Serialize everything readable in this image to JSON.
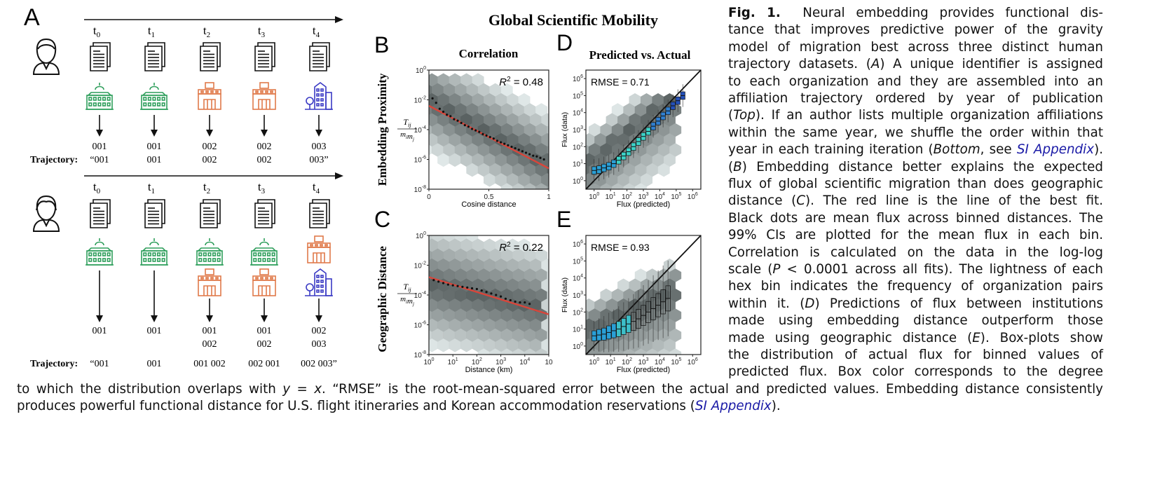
{
  "figure": {
    "title": "Global Scientific Mobility",
    "panel_labels": {
      "A": "A",
      "B": "B",
      "C": "C",
      "D": "D",
      "E": "E"
    },
    "panel_a": {
      "time_labels": [
        "t0",
        "t1",
        "t2",
        "t3",
        "t4"
      ],
      "time_base": "t",
      "time_subs": [
        "0",
        "1",
        "2",
        "3",
        "4"
      ],
      "trajectory_label": "Trajectory:",
      "top": {
        "ids": [
          "001",
          "001",
          "002",
          "002",
          "003"
        ],
        "trajectory": [
          "“001",
          "001",
          "002",
          "002",
          "003”"
        ],
        "buildings": [
          "green-university",
          "green-university",
          "orange-building",
          "orange-building",
          "blue-building"
        ]
      },
      "bottom": {
        "ids_row1": [
          "001",
          "001",
          "001",
          "001",
          "002"
        ],
        "ids_row2": [
          "",
          "",
          "002",
          "002",
          "003"
        ],
        "trajectory": [
          "“001",
          "001",
          "001 002",
          "002 001",
          "002  003”"
        ]
      }
    },
    "colors": {
      "green": "#2e9e5b",
      "orange": "#e07a4a",
      "blue": "#3a3ac4",
      "red_fit": "#d9453a",
      "link": "#1a1aa6"
    },
    "row_labels": {
      "top": "Embedding Proximity",
      "bottom": "Geographic Distance"
    },
    "col_titles": {
      "left": "Correlation",
      "right": "Predicted vs. Actual"
    },
    "ylabel_fraction": {
      "num": "T",
      "num_sub": "ij",
      "den": "m",
      "den_sub": "i",
      "den2": "m",
      "den2_sub": "j"
    }
  },
  "chart_data": [
    {
      "panel": "B",
      "type": "scatter",
      "title": "Correlation",
      "annotation": "R² = 0.48",
      "annotation_base": "R",
      "annotation_sup": "2",
      "annotation_rest": " = 0.48",
      "xlabel": "Cosine distance",
      "ylabel": "Tij / mi mj",
      "x_ticks": [
        "0",
        "0.5",
        "1"
      ],
      "xlim": [
        0,
        1
      ],
      "y_ticks": [
        "10^0",
        "10^-2",
        "10^-4",
        "10^-6",
        "10^-8"
      ],
      "ylim_log10": [
        -8,
        0
      ],
      "fit_line": {
        "x": [
          0,
          1
        ],
        "log10_y": [
          -2.4,
          -6.6
        ]
      },
      "mean_points": {
        "x": [
          0.03,
          0.06,
          0.09,
          0.12,
          0.15,
          0.18,
          0.21,
          0.24,
          0.27,
          0.3,
          0.33,
          0.36,
          0.39,
          0.42,
          0.45,
          0.48,
          0.51,
          0.54,
          0.57,
          0.6,
          0.63,
          0.66,
          0.69,
          0.72,
          0.75,
          0.78,
          0.81,
          0.84,
          0.87,
          0.9,
          0.93,
          0.96
        ],
        "log10_y": [
          -1.9,
          -2.2,
          -2.6,
          -2.8,
          -3.0,
          -3.1,
          -3.3,
          -3.4,
          -3.55,
          -3.7,
          -3.8,
          -3.95,
          -4.05,
          -4.15,
          -4.3,
          -4.4,
          -4.5,
          -4.6,
          -4.75,
          -4.85,
          -4.95,
          -5.05,
          -5.15,
          -5.25,
          -5.35,
          -5.45,
          -5.55,
          -5.65,
          -5.75,
          -5.8,
          -5.9,
          -6.0
        ]
      }
    },
    {
      "panel": "C",
      "type": "scatter",
      "annotation": "R² = 0.22",
      "annotation_base": "R",
      "annotation_sup": "2",
      "annotation_rest": " = 0.22",
      "xlabel": "Distance (km)",
      "ylabel": "Tij / mi mj",
      "x_ticks": [
        "10^0",
        "10^1",
        "10^2",
        "10^3",
        "10^4",
        "10"
      ],
      "xlim_log10": [
        0,
        5
      ],
      "y_ticks": [
        "10^0",
        "10^-2",
        "10^-4",
        "10^-6",
        "10^-8"
      ],
      "ylim_log10": [
        -8,
        0
      ],
      "fit_line": {
        "log10_x": [
          0,
          5
        ],
        "log10_y": [
          -2.8,
          -5.3
        ]
      },
      "mean_points": {
        "log10_x": [
          0.2,
          0.4,
          0.6,
          0.8,
          1.0,
          1.2,
          1.4,
          1.6,
          1.8,
          2.0,
          2.2,
          2.4,
          2.6,
          2.8,
          3.0,
          3.2,
          3.4,
          3.6,
          3.8,
          4.0,
          4.2
        ],
        "log10_y": [
          -3.0,
          -3.1,
          -3.2,
          -3.3,
          -3.35,
          -3.4,
          -3.45,
          -3.5,
          -3.55,
          -3.6,
          -3.7,
          -3.8,
          -3.9,
          -4.0,
          -4.1,
          -4.25,
          -4.35,
          -4.45,
          -4.5,
          -4.5,
          -4.6
        ]
      }
    },
    {
      "panel": "D",
      "type": "scatter",
      "title": "Predicted vs. Actual",
      "annotation": "RMSE = 0.71",
      "xlabel": "Flux (predicted)",
      "ylabel": "Flux (data)",
      "x_ticks": [
        "10^0",
        "10^1",
        "10^2",
        "10^3",
        "10^4",
        "10^5",
        "10^6"
      ],
      "xlim_log10": [
        -0.5,
        6.5
      ],
      "y_ticks": [
        "10^0",
        "10^1",
        "10^2",
        "10^3",
        "10^4",
        "10^5",
        "10^6"
      ],
      "ylim_log10": [
        -0.5,
        6.5
      ],
      "identity_line": true,
      "box_medians": {
        "log10_x": [
          0.0,
          0.3,
          0.6,
          0.9,
          1.2,
          1.5,
          1.8,
          2.1,
          2.4,
          2.7,
          3.0,
          3.3,
          3.6,
          3.9,
          4.2,
          4.5,
          4.8,
          5.1,
          5.4
        ],
        "log10_y": [
          0.6,
          0.65,
          0.75,
          0.85,
          1.0,
          1.2,
          1.45,
          1.7,
          2.0,
          2.3,
          2.6,
          2.9,
          3.2,
          3.5,
          3.8,
          4.1,
          4.4,
          4.7,
          5.0
        ]
      }
    },
    {
      "panel": "E",
      "type": "scatter",
      "annotation": "RMSE = 0.93",
      "xlabel": "Flux (predicted)",
      "ylabel": "Flux (data)",
      "x_ticks": [
        "10^0",
        "10^1",
        "10^2",
        "10^3",
        "10^4",
        "10^5",
        "10^6"
      ],
      "xlim_log10": [
        -0.5,
        6.5
      ],
      "y_ticks": [
        "10^0",
        "10^1",
        "10^2",
        "10^3",
        "10^4",
        "10^5",
        "10^6"
      ],
      "ylim_log10": [
        -0.5,
        6.5
      ],
      "identity_line": true,
      "box_medians": {
        "log10_x": [
          0.0,
          0.3,
          0.6,
          0.9,
          1.2,
          1.5,
          1.8,
          2.1,
          2.4,
          2.7,
          3.0,
          3.3,
          3.6,
          3.9,
          4.2,
          4.5
        ],
        "log10_y": [
          0.6,
          0.65,
          0.7,
          0.8,
          0.9,
          1.0,
          1.15,
          1.3,
          1.45,
          1.6,
          1.8,
          2.0,
          2.2,
          2.4,
          2.6,
          2.8
        ]
      }
    }
  ],
  "caption": {
    "lines": [
      [
        "Fig. 1.",
        "Neural embedding provides functional dis-"
      ],
      [
        "",
        "tance that improves predictive power of the gravity"
      ],
      [
        "",
        "model of migration best across three distinct human"
      ],
      [
        "",
        "trajectory datasets. (A) A unique identifier is assigned"
      ],
      [
        "",
        "to each organization and they are assembled into an"
      ],
      [
        "",
        "affiliation trajectory ordered by year of publication"
      ],
      [
        "",
        "(Top). If an author lists multiple organization affiliations"
      ],
      [
        "",
        "within the same year, we shuffle the order within that"
      ],
      [
        "",
        "year in each training iteration (Bottom, see SI Appendix)."
      ],
      [
        "",
        "(B) Embedding distance better explains the expected"
      ],
      [
        "",
        "flux of global scientific migration than does geographic"
      ],
      [
        "",
        "distance (C). The red line is the line of the best fit."
      ],
      [
        "",
        "Black dots are mean flux across binned distances. The"
      ],
      [
        "",
        "99% CIs are plotted for the mean flux in each bin."
      ],
      [
        "",
        "Correlation is calculated on the data in the log-log"
      ],
      [
        "",
        "scale (P < 0.0001 across all fits). The lightness of each"
      ],
      [
        "",
        "hex bin indicates the frequency of organization pairs"
      ],
      [
        "",
        "within it. (D) Predictions of flux between institutions"
      ],
      [
        "",
        "made using embedding distance outperform those"
      ],
      [
        "",
        "made using geographic distance (E). Box-plots show"
      ],
      [
        "",
        "the distribution of actual flux for binned values of"
      ],
      [
        "",
        "predicted flux. Box color corresponds to the degree"
      ]
    ],
    "wide_lines": [
      "to which the distribution overlaps with y = x. “RMSE” is the root-mean-squared error between the actual and predicted values. Embedding distance consistently",
      "produces powerful functional distance for U.S. flight itineraries and Korean accommodation reservations (SI Appendix)."
    ]
  }
}
